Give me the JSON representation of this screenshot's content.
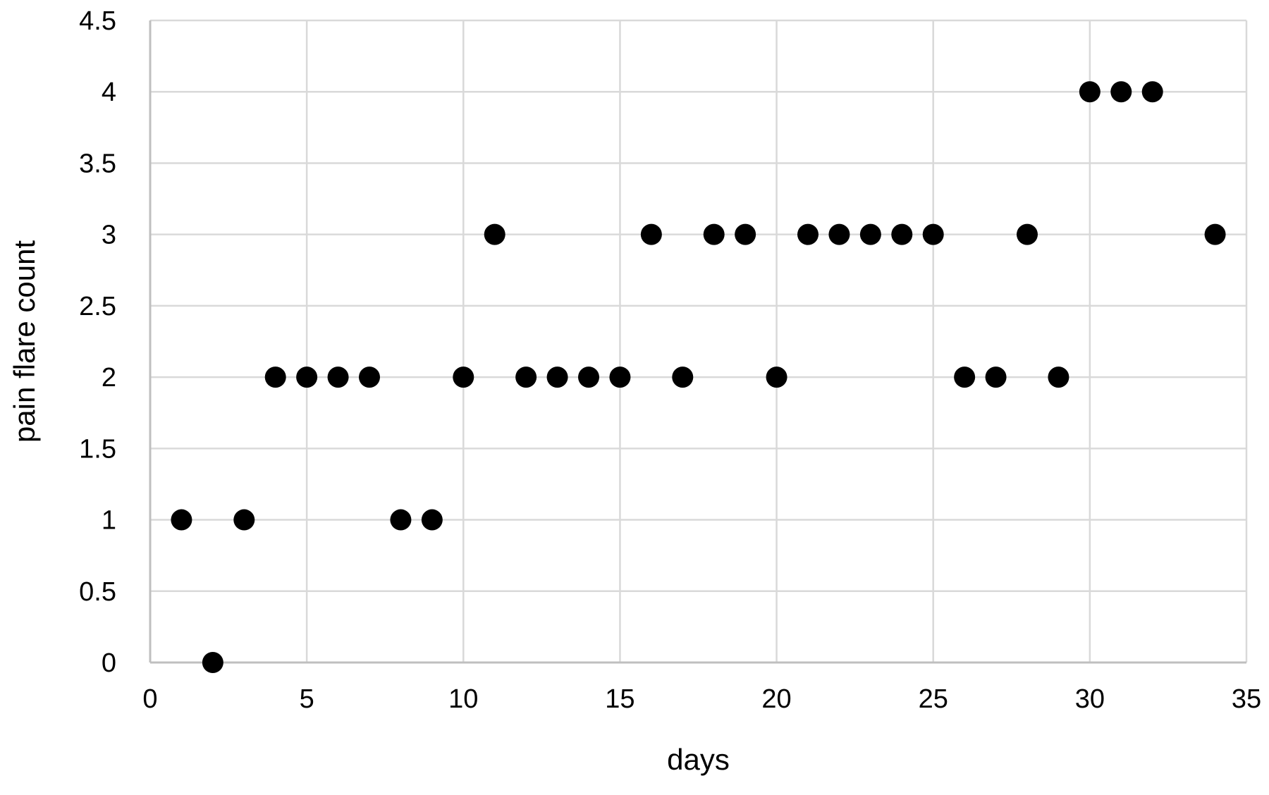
{
  "chart_data": {
    "type": "scatter",
    "title": "",
    "xlabel": "days",
    "ylabel": "pain flare count",
    "xlim": [
      0,
      35
    ],
    "ylim": [
      0,
      4.5
    ],
    "x_ticks": [
      0,
      5,
      10,
      15,
      20,
      25,
      30,
      35
    ],
    "y_ticks": [
      0,
      0.5,
      1,
      1.5,
      2,
      2.5,
      3,
      3.5,
      4,
      4.5
    ],
    "grid": true,
    "legend": "none",
    "marker_color": "#000000",
    "series": [
      {
        "points": [
          {
            "x": 1,
            "y": 1
          },
          {
            "x": 2,
            "y": 0
          },
          {
            "x": 3,
            "y": 1
          },
          {
            "x": 4,
            "y": 2
          },
          {
            "x": 5,
            "y": 2
          },
          {
            "x": 6,
            "y": 2
          },
          {
            "x": 7,
            "y": 2
          },
          {
            "x": 8,
            "y": 1
          },
          {
            "x": 9,
            "y": 1
          },
          {
            "x": 10,
            "y": 2
          },
          {
            "x": 11,
            "y": 3
          },
          {
            "x": 12,
            "y": 2
          },
          {
            "x": 13,
            "y": 2
          },
          {
            "x": 14,
            "y": 2
          },
          {
            "x": 15,
            "y": 2
          },
          {
            "x": 16,
            "y": 3
          },
          {
            "x": 17,
            "y": 2
          },
          {
            "x": 18,
            "y": 3
          },
          {
            "x": 19,
            "y": 3
          },
          {
            "x": 20,
            "y": 2
          },
          {
            "x": 21,
            "y": 3
          },
          {
            "x": 22,
            "y": 3
          },
          {
            "x": 23,
            "y": 3
          },
          {
            "x": 24,
            "y": 3
          },
          {
            "x": 25,
            "y": 3
          },
          {
            "x": 26,
            "y": 2
          },
          {
            "x": 27,
            "y": 2
          },
          {
            "x": 28,
            "y": 3
          },
          {
            "x": 29,
            "y": 2
          },
          {
            "x": 30,
            "y": 4
          },
          {
            "x": 31,
            "y": 4
          },
          {
            "x": 32,
            "y": 4
          },
          {
            "x": 34,
            "y": 3
          }
        ]
      }
    ]
  }
}
